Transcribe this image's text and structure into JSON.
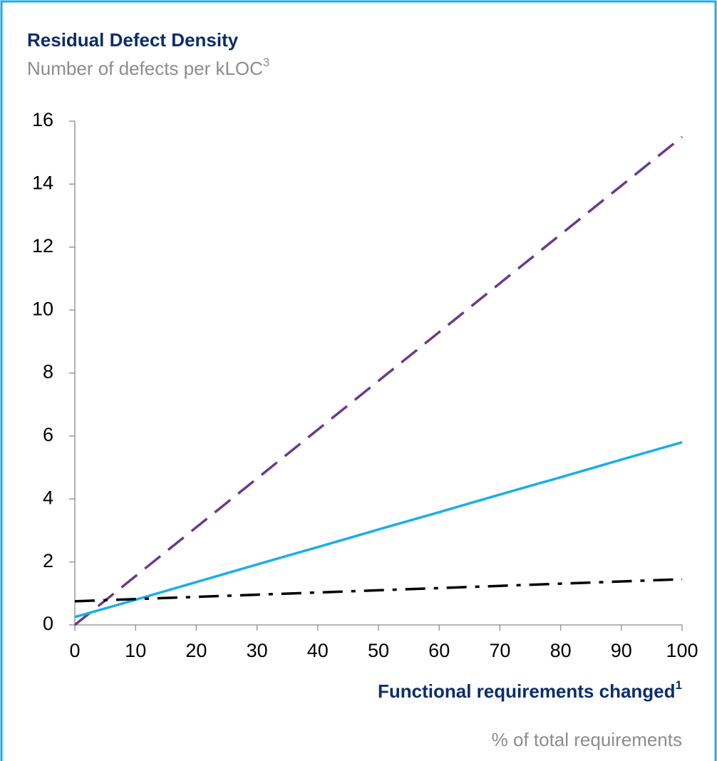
{
  "chart_data": {
    "type": "line",
    "title": "Residual Defect Density",
    "subtitle": "Number of defects per kLOC",
    "subtitle_superscript": "3",
    "x_label": "Functional requirements changed",
    "x_label_superscript": "1",
    "x_sublabel": "% of total requirements",
    "x": [
      0,
      10,
      20,
      30,
      40,
      50,
      60,
      70,
      80,
      90,
      100
    ],
    "series": [
      {
        "color": "#6b3a8c",
        "dash": "dashed",
        "values": [
          0,
          1.55,
          3.1,
          4.65,
          6.2,
          7.75,
          9.3,
          10.85,
          12.4,
          13.95,
          15.5
        ]
      },
      {
        "color": "#1aaee8",
        "dash": "solid",
        "values": [
          0.25,
          0.8,
          1.36,
          1.92,
          2.47,
          3.03,
          3.58,
          4.14,
          4.69,
          5.25,
          5.8
        ]
      },
      {
        "color": "#000000",
        "dash": "dashdot",
        "values": [
          0.75,
          0.82,
          0.89,
          0.96,
          1.03,
          1.1,
          1.17,
          1.24,
          1.31,
          1.38,
          1.45
        ]
      }
    ],
    "xlim": [
      0,
      100
    ],
    "xticks": [
      0,
      10,
      20,
      30,
      40,
      50,
      60,
      70,
      80,
      90,
      100
    ],
    "ylim": [
      0,
      16
    ],
    "yticks": [
      0,
      2,
      4,
      6,
      8,
      10,
      12,
      14,
      16
    ],
    "grid": false
  }
}
